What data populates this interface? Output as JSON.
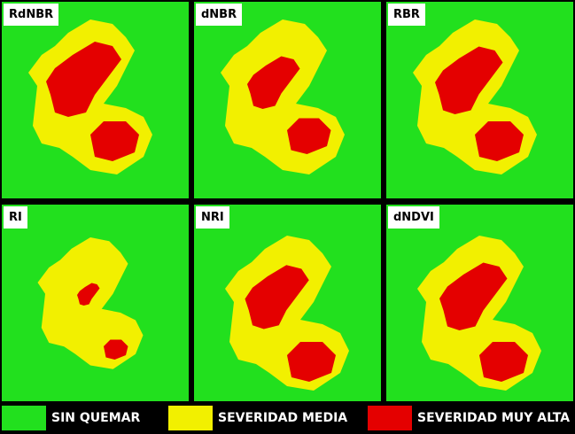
{
  "panels": [
    {
      "label": "RdNBR"
    },
    {
      "label": "dNBR"
    },
    {
      "label": "RBR"
    },
    {
      "label": "RI"
    },
    {
      "label": "NRI"
    },
    {
      "label": "dNDVI"
    }
  ],
  "legend": [
    {
      "label": "SIN QUEMAR"
    },
    {
      "label": "SEVERIDAD MEDIA"
    },
    {
      "label": "SEVERIDAD MUY ALTA"
    }
  ]
}
